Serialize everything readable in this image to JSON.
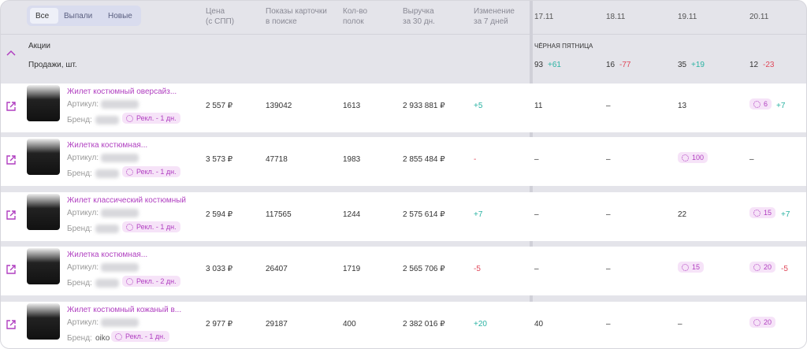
{
  "tabs": [
    "Все",
    "Выпали",
    "Новые"
  ],
  "columns": {
    "price": "Цена\n(с СПП)",
    "shows": "Показы карточки\nв поиске",
    "shelves": "Кол-во\nполок",
    "revenue": "Выручка\nза 30 дн.",
    "change": "Изменение\nза 7 дней",
    "dates": [
      "17.11",
      "18.11",
      "19.11",
      "20.11"
    ]
  },
  "promo_row": {
    "label": "Акции",
    "days": [
      "ЧЁРНАЯ ПЯТНИЦА"
    ]
  },
  "sales_row": {
    "label": "Продажи, шт.",
    "days": [
      {
        "value": "93",
        "delta": "+61"
      },
      {
        "value": "16",
        "delta": "-77"
      },
      {
        "value": "35",
        "delta": "+19"
      },
      {
        "value": "12",
        "delta": "-23"
      }
    ]
  },
  "labels": {
    "article": "Артикул:",
    "brand": "Бренд:"
  },
  "products": [
    {
      "title": "Жилет костюмный оверсайз...",
      "brand": null,
      "ad": "Рекл. - 1 дн.",
      "price": "2 557 ₽",
      "shows": "139042",
      "shelves": "1613",
      "revenue": "2 933 881 ₽",
      "change": "+5",
      "days": [
        {
          "value": "11",
          "ad": false
        },
        {
          "value": "–",
          "ad": false
        },
        {
          "value": "13",
          "ad": false
        },
        {
          "value": "6",
          "ad": true,
          "delta": "+7"
        }
      ]
    },
    {
      "title": "Жилетка костюмная...",
      "brand": null,
      "ad": "Рекл. - 1 дн.",
      "price": "3 573 ₽",
      "shows": "47718",
      "shelves": "1983",
      "revenue": "2 855 484 ₽",
      "change": "-",
      "days": [
        {
          "value": "–",
          "ad": false
        },
        {
          "value": "–",
          "ad": false
        },
        {
          "value": "100",
          "ad": true
        },
        {
          "value": "–",
          "ad": false
        }
      ]
    },
    {
      "title": "Жилет классический костюмный",
      "brand": null,
      "ad": "Рекл. - 1 дн.",
      "price": "2 594 ₽",
      "shows": "117565",
      "shelves": "1244",
      "revenue": "2 575 614 ₽",
      "change": "+7",
      "days": [
        {
          "value": "–",
          "ad": false
        },
        {
          "value": "–",
          "ad": false
        },
        {
          "value": "22",
          "ad": false
        },
        {
          "value": "15",
          "ad": true,
          "delta": "+7"
        }
      ]
    },
    {
      "title": "Жилетка костюмная...",
      "brand": null,
      "ad": "Рекл. - 2 дн.",
      "price": "3 033 ₽",
      "shows": "26407",
      "shelves": "1719",
      "revenue": "2 565 706 ₽",
      "change": "-5",
      "days": [
        {
          "value": "–",
          "ad": false
        },
        {
          "value": "–",
          "ad": false
        },
        {
          "value": "15",
          "ad": true
        },
        {
          "value": "20",
          "ad": true,
          "delta": "-5"
        }
      ]
    },
    {
      "title": "Жилет костюмный кожаный в...",
      "brand": "oiko",
      "ad": "Рекл. - 1 дн.",
      "price": "2 977 ₽",
      "shows": "29187",
      "shelves": "400",
      "revenue": "2 382 016 ₽",
      "change": "+20",
      "days": [
        {
          "value": "40",
          "ad": false
        },
        {
          "value": "–",
          "ad": false
        },
        {
          "value": "–",
          "ad": false
        },
        {
          "value": "20",
          "ad": true
        }
      ]
    }
  ]
}
